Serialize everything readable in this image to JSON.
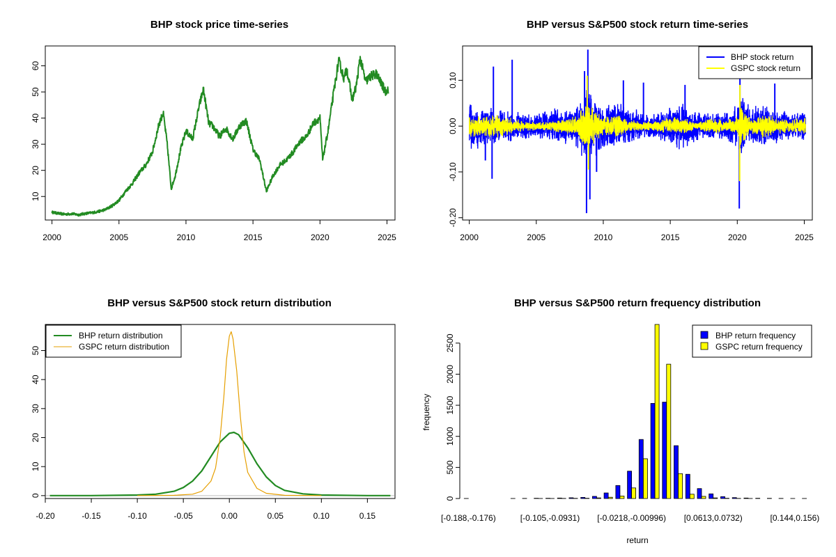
{
  "chart_data": [
    {
      "type": "line",
      "title": "BHP stock price time-series",
      "xlabel": "",
      "ylabel": "",
      "xlim": [
        1999.5,
        2025.6
      ],
      "ylim": [
        1.0,
        67.6
      ],
      "xticks": [
        "2000",
        "2005",
        "2010",
        "2015",
        "2020",
        "2025"
      ],
      "yticks": [
        "10",
        "20",
        "30",
        "40",
        "50",
        "60"
      ],
      "color": "#228B22",
      "series": [
        {
          "points": [
            [
              2000.0,
              4.0
            ],
            [
              2000.5,
              3.5
            ],
            [
              2001.0,
              3.2
            ],
            [
              2001.5,
              3.4
            ],
            [
              2002.0,
              3.0
            ],
            [
              2002.5,
              3.5
            ],
            [
              2003.0,
              3.8
            ],
            [
              2003.5,
              4.3
            ],
            [
              2004.0,
              5.0
            ],
            [
              2004.5,
              6.5
            ],
            [
              2005.0,
              8.5
            ],
            [
              2005.5,
              12.0
            ],
            [
              2006.0,
              15.0
            ],
            [
              2006.5,
              19.0
            ],
            [
              2007.0,
              22.0
            ],
            [
              2007.5,
              27.0
            ],
            [
              2008.0,
              38.0
            ],
            [
              2008.3,
              42.0
            ],
            [
              2008.6,
              30.0
            ],
            [
              2008.9,
              13.0
            ],
            [
              2009.2,
              18.0
            ],
            [
              2009.6,
              28.0
            ],
            [
              2010.0,
              35.0
            ],
            [
              2010.5,
              32.0
            ],
            [
              2011.0,
              45.0
            ],
            [
              2011.3,
              51.0
            ],
            [
              2011.7,
              38.0
            ],
            [
              2012.0,
              37.0
            ],
            [
              2012.5,
              33.0
            ],
            [
              2013.0,
              36.0
            ],
            [
              2013.5,
              32.0
            ],
            [
              2014.0,
              37.0
            ],
            [
              2014.5,
              39.0
            ],
            [
              2015.0,
              28.0
            ],
            [
              2015.5,
              24.0
            ],
            [
              2016.0,
              12.0
            ],
            [
              2016.5,
              18.0
            ],
            [
              2017.0,
              22.0
            ],
            [
              2017.5,
              24.0
            ],
            [
              2018.0,
              27.0
            ],
            [
              2018.5,
              31.0
            ],
            [
              2019.0,
              33.0
            ],
            [
              2019.5,
              38.0
            ],
            [
              2020.0,
              40.0
            ],
            [
              2020.2,
              24.0
            ],
            [
              2020.6,
              35.0
            ],
            [
              2021.0,
              49.0
            ],
            [
              2021.4,
              62.0
            ],
            [
              2021.8,
              55.0
            ],
            [
              2022.0,
              59.0
            ],
            [
              2022.4,
              47.0
            ],
            [
              2022.7,
              52.0
            ],
            [
              2023.0,
              63.0
            ],
            [
              2023.4,
              54.0
            ],
            [
              2023.8,
              56.0
            ],
            [
              2024.2,
              57.0
            ],
            [
              2024.6,
              53.0
            ],
            [
              2024.9,
              50.0
            ],
            [
              2025.0,
              51.0
            ]
          ]
        }
      ]
    },
    {
      "type": "line",
      "title": "BHP versus S&P500 stock return time-series",
      "xlabel": "",
      "ylabel": "",
      "xlim": [
        1999.5,
        2025.6
      ],
      "ylim": [
        -0.205,
        0.175
      ],
      "xticks": [
        "2000",
        "2005",
        "2010",
        "2015",
        "2020",
        "2025"
      ],
      "yticks": [
        "-0.20",
        "-0.10",
        "0.00",
        "0.10"
      ],
      "legend": {
        "position": "top-right"
      },
      "series": [
        {
          "name": "BHP stock return",
          "color": "#0000FF",
          "envelope": [
            [
              2000.0,
              0.06
            ],
            [
              2001.0,
              0.045
            ],
            [
              2002.0,
              0.04
            ],
            [
              2003.0,
              0.035
            ],
            [
              2004.0,
              0.03
            ],
            [
              2005.0,
              0.028
            ],
            [
              2006.0,
              0.04
            ],
            [
              2007.0,
              0.045
            ],
            [
              2008.0,
              0.05
            ],
            [
              2008.8,
              0.09
            ],
            [
              2009.5,
              0.065
            ],
            [
              2010.0,
              0.045
            ],
            [
              2011.0,
              0.055
            ],
            [
              2012.0,
              0.04
            ],
            [
              2013.0,
              0.035
            ],
            [
              2014.0,
              0.03
            ],
            [
              2015.0,
              0.045
            ],
            [
              2016.0,
              0.06
            ],
            [
              2017.0,
              0.035
            ],
            [
              2018.0,
              0.03
            ],
            [
              2019.0,
              0.03
            ],
            [
              2020.0,
              0.05
            ],
            [
              2020.3,
              0.075
            ],
            [
              2021.0,
              0.045
            ],
            [
              2022.0,
              0.05
            ],
            [
              2023.0,
              0.04
            ],
            [
              2024.0,
              0.035
            ],
            [
              2025.0,
              0.035
            ]
          ],
          "spikes": [
            [
              2001.8,
              0.13
            ],
            [
              2001.7,
              -0.115
            ],
            [
              2003.2,
              0.145
            ],
            [
              2008.85,
              0.167
            ],
            [
              2008.75,
              -0.19
            ],
            [
              2009.0,
              -0.16
            ],
            [
              2020.2,
              0.11
            ],
            [
              2020.15,
              -0.18
            ],
            [
              2008.6,
              0.12
            ],
            [
              2022.8,
              0.093
            ],
            [
              2011.5,
              0.1
            ],
            [
              2001.2,
              -0.075
            ],
            [
              2009.5,
              -0.1
            ],
            [
              2016.1,
              0.09
            ],
            [
              2013.0,
              0.095
            ]
          ]
        },
        {
          "name": "GSPC stock return",
          "color": "#FFFF00",
          "envelope": [
            [
              2000.0,
              0.025
            ],
            [
              2001.0,
              0.025
            ],
            [
              2002.0,
              0.028
            ],
            [
              2003.0,
              0.02
            ],
            [
              2004.0,
              0.012
            ],
            [
              2005.0,
              0.01
            ],
            [
              2006.0,
              0.01
            ],
            [
              2007.0,
              0.018
            ],
            [
              2008.0,
              0.025
            ],
            [
              2008.8,
              0.06
            ],
            [
              2009.5,
              0.035
            ],
            [
              2010.0,
              0.02
            ],
            [
              2011.0,
              0.03
            ],
            [
              2012.0,
              0.015
            ],
            [
              2013.0,
              0.012
            ],
            [
              2014.0,
              0.012
            ],
            [
              2015.0,
              0.02
            ],
            [
              2016.0,
              0.02
            ],
            [
              2017.0,
              0.008
            ],
            [
              2018.0,
              0.02
            ],
            [
              2019.0,
              0.015
            ],
            [
              2020.0,
              0.02
            ],
            [
              2020.3,
              0.05
            ],
            [
              2021.0,
              0.02
            ],
            [
              2022.0,
              0.03
            ],
            [
              2023.0,
              0.018
            ],
            [
              2024.0,
              0.015
            ],
            [
              2025.0,
              0.02
            ]
          ],
          "spikes": [
            [
              2008.8,
              0.11
            ],
            [
              2008.9,
              -0.095
            ],
            [
              2020.2,
              0.09
            ],
            [
              2020.18,
              -0.12
            ]
          ]
        }
      ]
    },
    {
      "type": "line",
      "title": "BHP versus S&P500 stock return distribution",
      "xlabel": "",
      "ylabel": "",
      "xlim": [
        -0.2,
        0.18
      ],
      "ylim": [
        -1.0,
        59.0
      ],
      "xticks": [
        "-0.20",
        "-0.15",
        "-0.10",
        "-0.05",
        "0.00",
        "0.05",
        "0.10",
        "0.15"
      ],
      "yticks": [
        "0",
        "10",
        "20",
        "30",
        "40",
        "50"
      ],
      "legend": {
        "position": "top-left"
      },
      "series": [
        {
          "name": "BHP return distribution",
          "color": "#228B22",
          "x": [
            -0.195,
            -0.15,
            -0.1,
            -0.08,
            -0.06,
            -0.05,
            -0.04,
            -0.03,
            -0.02,
            -0.01,
            0.0,
            0.005,
            0.01,
            0.02,
            0.03,
            0.04,
            0.05,
            0.06,
            0.08,
            0.1,
            0.15,
            0.175
          ],
          "y": [
            0,
            0,
            0.2,
            0.5,
            1.5,
            2.8,
            5.0,
            8.5,
            13.5,
            18.5,
            21.5,
            21.8,
            21.0,
            16.5,
            11.0,
            6.5,
            3.5,
            1.8,
            0.6,
            0.2,
            0,
            0
          ]
        },
        {
          "name": "GSPC return distribution",
          "color": "#E69F00",
          "x": [
            -0.1,
            -0.06,
            -0.04,
            -0.03,
            -0.02,
            -0.015,
            -0.01,
            -0.006,
            -0.003,
            0.0,
            0.002,
            0.004,
            0.008,
            0.012,
            0.016,
            0.02,
            0.03,
            0.04,
            0.06,
            0.1
          ],
          "y": [
            0,
            0.1,
            0.5,
            1.5,
            5.0,
            9.5,
            20.0,
            34.0,
            47.0,
            55.0,
            56.5,
            54.0,
            43.0,
            27.0,
            15.0,
            8.0,
            2.5,
            0.8,
            0.1,
            0
          ]
        }
      ]
    },
    {
      "type": "bar",
      "title": "BHP versus S&P500 return frequency distribution",
      "xlabel": "return",
      "ylabel": "frequency",
      "ylim": [
        0,
        2800
      ],
      "yticks": [
        "0",
        "500",
        "1000",
        "1500",
        "2000",
        "2500"
      ],
      "tick_labels": [
        "[-0.188,-0.176)",
        "[-0.105,-0.0931)",
        "[-0.0218,-0.00996)",
        "[0.0613,0.0732)",
        "[0.144,0.156)"
      ],
      "tick_bins": [
        0,
        7,
        14,
        21,
        28
      ],
      "legend": {
        "position": "top-right"
      },
      "series": [
        {
          "name": "BHP return frequency",
          "color": "#0000FF",
          "values": [
            1,
            0,
            0,
            0,
            1,
            2,
            4,
            5,
            8,
            12,
            18,
            35,
            90,
            210,
            440,
            950,
            1530,
            1550,
            850,
            390,
            160,
            75,
            30,
            15,
            8,
            5,
            3,
            2,
            1,
            1
          ]
        },
        {
          "name": "GSPC return frequency",
          "color": "#FFFF00",
          "values": [
            0,
            0,
            0,
            0,
            0,
            0,
            1,
            1,
            2,
            3,
            5,
            10,
            20,
            40,
            170,
            640,
            2800,
            2160,
            400,
            70,
            35,
            10,
            5,
            2,
            1,
            0,
            0,
            0,
            0,
            0
          ]
        }
      ]
    }
  ]
}
